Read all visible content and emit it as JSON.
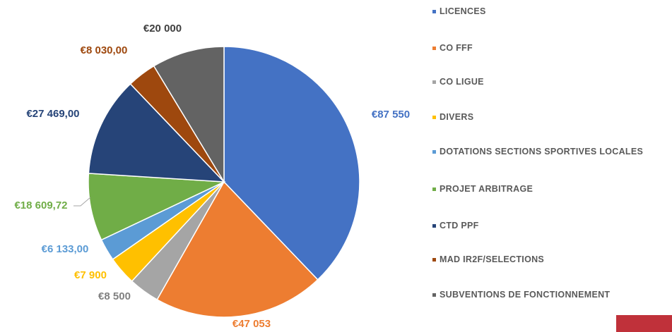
{
  "chart_data": {
    "type": "pie",
    "categories": [
      "LICENCES",
      "CO FFF",
      "CO LIGUE",
      "DIVERS",
      "DOTATIONS SECTIONS SPORTIVES LOCALES",
      "PROJET ARBITRAGE",
      "CTD PPF",
      "MAD IR2F/SELECTIONS",
      "SUBVENTIONS DE FONCTIONNEMENT"
    ],
    "values": [
      87550,
      47053,
      8500,
      7900,
      6133,
      18609.72,
      27469,
      8030,
      20000
    ],
    "value_labels": [
      "€87 550",
      "€47 053",
      "€8 500",
      "€7 900",
      "€6 133,00",
      "€18 609,72",
      "€27 469,00",
      "€8 030,00",
      "€20 000"
    ],
    "colors": [
      "#4472c4",
      "#ed7d31",
      "#a5a5a5",
      "#ffc000",
      "#5b9bd5",
      "#70ad47",
      "#264478",
      "#9e480e",
      "#636363"
    ],
    "legend": "right"
  }
}
